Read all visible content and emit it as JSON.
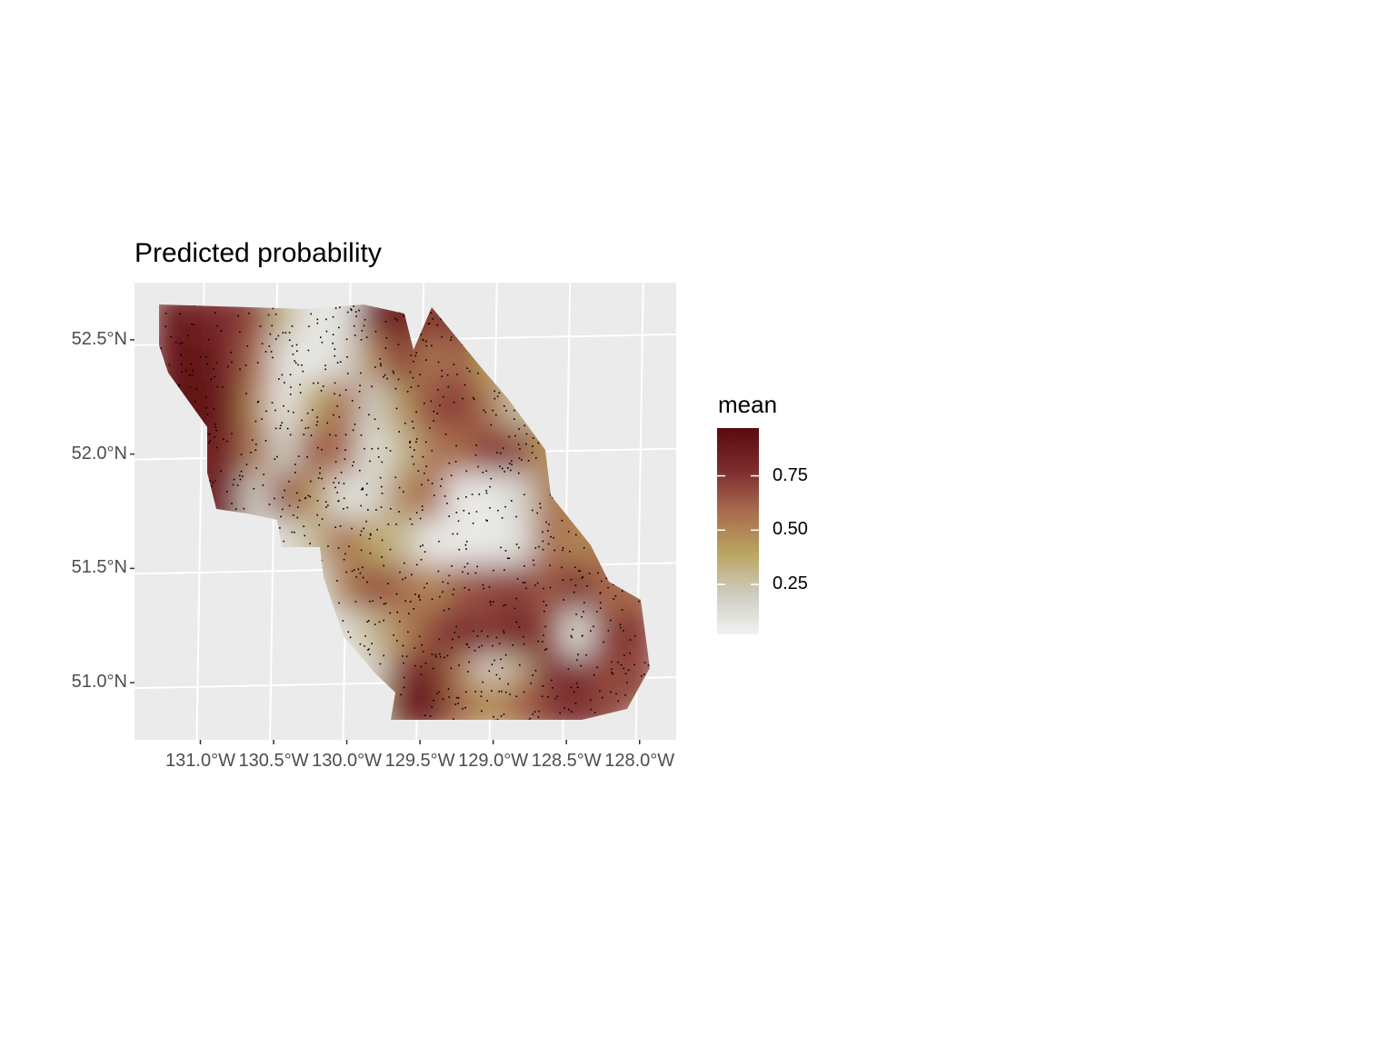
{
  "title": "Predicted probability",
  "legend": {
    "title": "mean",
    "ticks": [
      {
        "value": 0.25,
        "label": "0.25"
      },
      {
        "value": 0.5,
        "label": "0.50"
      },
      {
        "value": 0.75,
        "label": "0.75"
      }
    ],
    "range": [
      0.02,
      0.97
    ],
    "colors": [
      "#f2f2f2",
      "#cfcfc4",
      "#b9a35f",
      "#a86a4e",
      "#7c2a2d",
      "#5a0a0e"
    ]
  },
  "axes": {
    "y_ticks": [
      {
        "value": 52.5,
        "label": "52.5°N"
      },
      {
        "value": 52.0,
        "label": "52.0°N"
      },
      {
        "value": 51.5,
        "label": "51.5°N"
      },
      {
        "value": 51.0,
        "label": "51.0°N"
      }
    ],
    "x_ticks": [
      {
        "value": -131.0,
        "label": "131.0°W"
      },
      {
        "value": -130.5,
        "label": "130.5°W"
      },
      {
        "value": -130.0,
        "label": "130.0°W"
      },
      {
        "value": -129.5,
        "label": "129.5°W"
      },
      {
        "value": -129.0,
        "label": "129.0°W"
      },
      {
        "value": -128.5,
        "label": "128.5°W"
      },
      {
        "value": -128.0,
        "label": "128.0°W"
      }
    ]
  },
  "chart_data": {
    "type": "heatmap",
    "title": "Predicted probability",
    "fill_variable": "mean",
    "xlim": [
      -131.45,
      -127.75
    ],
    "ylim": [
      50.75,
      52.75
    ],
    "panel_background": "#ebebeb",
    "grid": true,
    "legend_position": "right",
    "lon": [
      -131.2,
      -131.0,
      -130.8,
      -130.6,
      -130.4,
      -130.2,
      -130.0,
      -129.8,
      -129.6,
      -129.4,
      -129.2,
      -129.0,
      -128.8,
      -128.6,
      -128.4,
      -128.2,
      -128.0
    ],
    "lat": [
      52.6,
      52.4,
      52.2,
      52.0,
      51.8,
      51.6,
      51.4,
      51.2,
      51.0,
      50.9
    ],
    "values": [
      [
        0.9,
        0.85,
        0.8,
        0.7,
        0.3,
        0.05,
        0.1,
        0.85,
        0.9,
        null,
        0.8,
        null,
        null,
        null,
        null,
        null,
        null
      ],
      [
        null,
        0.95,
        0.85,
        0.6,
        0.1,
        0.05,
        0.15,
        0.5,
        0.75,
        0.55,
        0.65,
        0.4,
        null,
        null,
        null,
        null,
        null
      ],
      [
        null,
        0.95,
        0.9,
        0.5,
        0.05,
        0.4,
        0.6,
        0.2,
        0.45,
        0.7,
        0.75,
        0.55,
        0.25,
        null,
        null,
        null,
        null
      ],
      [
        null,
        null,
        0.85,
        0.55,
        0.2,
        0.65,
        0.6,
        0.1,
        0.3,
        0.55,
        0.6,
        0.75,
        0.7,
        0.45,
        null,
        null,
        null
      ],
      [
        null,
        null,
        0.85,
        0.2,
        0.7,
        0.45,
        0.1,
        0.15,
        0.5,
        0.6,
        0.05,
        0.05,
        0.15,
        0.55,
        null,
        null,
        null
      ],
      [
        null,
        null,
        null,
        null,
        0.1,
        0.3,
        0.6,
        0.4,
        0.3,
        0.05,
        0.05,
        0.05,
        0.1,
        0.6,
        0.5,
        null,
        null
      ],
      [
        null,
        null,
        null,
        null,
        null,
        0.1,
        0.5,
        0.7,
        0.6,
        0.5,
        0.65,
        0.7,
        0.75,
        0.65,
        0.8,
        0.6,
        null
      ],
      [
        null,
        null,
        null,
        null,
        null,
        0.05,
        0.1,
        0.3,
        0.5,
        0.7,
        0.8,
        0.75,
        0.85,
        0.7,
        0.1,
        0.75,
        null
      ],
      [
        null,
        null,
        null,
        null,
        null,
        null,
        0.05,
        0.1,
        0.75,
        0.9,
        0.5,
        0.1,
        0.3,
        0.8,
        0.85,
        0.7,
        null
      ],
      [
        null,
        null,
        null,
        null,
        null,
        null,
        null,
        0.3,
        0.85,
        0.9,
        0.6,
        0.45,
        0.6,
        0.75,
        null,
        null,
        null
      ]
    ],
    "observation_points_shown": true
  }
}
